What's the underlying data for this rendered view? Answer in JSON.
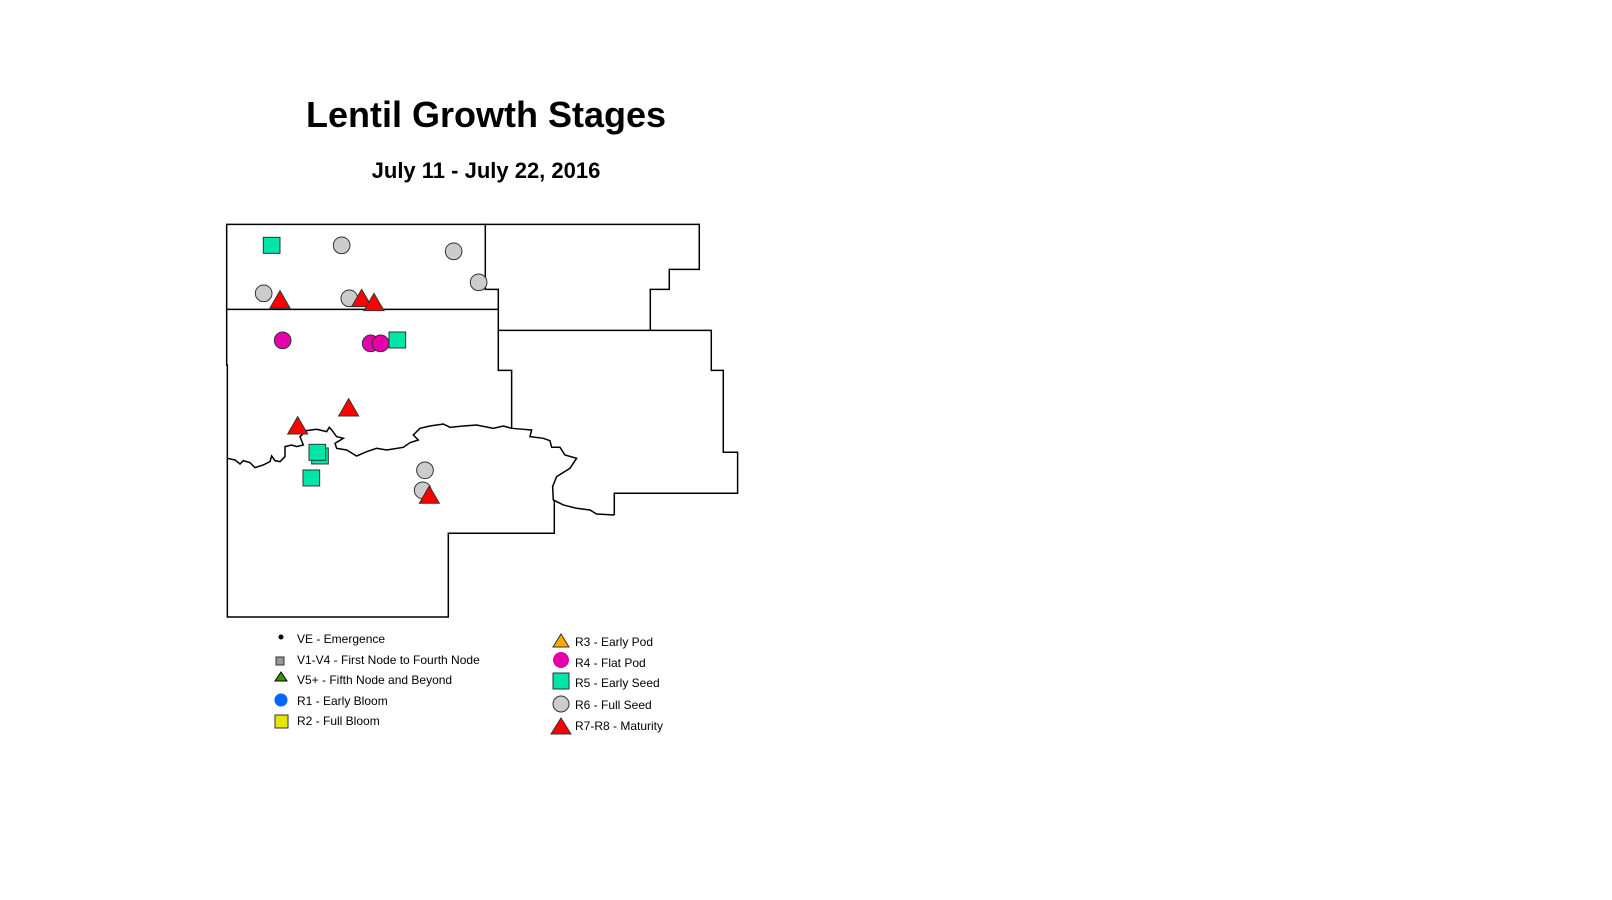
{
  "title": "Lentil Growth Stages",
  "subtitle": "July 11 - July 22, 2016",
  "legend": {
    "left": [
      {
        "label": "VE - Emergence",
        "symbol": "dot",
        "color": "#000000"
      },
      {
        "label": "V1-V4 - First Node to Fourth Node",
        "symbol": "square-small",
        "color": "#999999"
      },
      {
        "label": "V5+ - Fifth Node and Beyond",
        "symbol": "triangle-small",
        "color": "#339900"
      },
      {
        "label": "R1 - Early Bloom",
        "symbol": "circle",
        "color": "#0066ff"
      },
      {
        "label": "R2 - Full Bloom",
        "symbol": "square",
        "color": "#e6e600"
      }
    ],
    "right": [
      {
        "label": "R3 - Early Pod",
        "symbol": "triangle",
        "color": "#ffaa00"
      },
      {
        "label": "R4 - Flat Pod",
        "symbol": "circle",
        "color": "#e600a9"
      },
      {
        "label": "R5 - Early Seed",
        "symbol": "square",
        "color": "#00e6a9"
      },
      {
        "label": "R6 - Full Seed",
        "symbol": "circle",
        "color": "#cccccc"
      },
      {
        "label": "R7-R8 - Maturity",
        "symbol": "triangle",
        "color": "#ff0000"
      }
    ]
  },
  "observations": [
    {
      "stage": "R5"
    },
    {
      "stage": "R5"
    },
    {
      "stage": "R5"
    },
    {
      "stage": "R5"
    },
    {
      "stage": "R5"
    },
    {
      "stage": "R6"
    },
    {
      "stage": "R6"
    },
    {
      "stage": "R6"
    },
    {
      "stage": "R6"
    },
    {
      "stage": "R6"
    },
    {
      "stage": "R6"
    },
    {
      "stage": "R6"
    },
    {
      "stage": "R7-R8"
    },
    {
      "stage": "R7-R8"
    },
    {
      "stage": "R7-R8"
    },
    {
      "stage": "R7-R8"
    },
    {
      "stage": "R7-R8"
    },
    {
      "stage": "R7-R8"
    },
    {
      "stage": "R4"
    },
    {
      "stage": "R4"
    },
    {
      "stage": "R4"
    }
  ]
}
